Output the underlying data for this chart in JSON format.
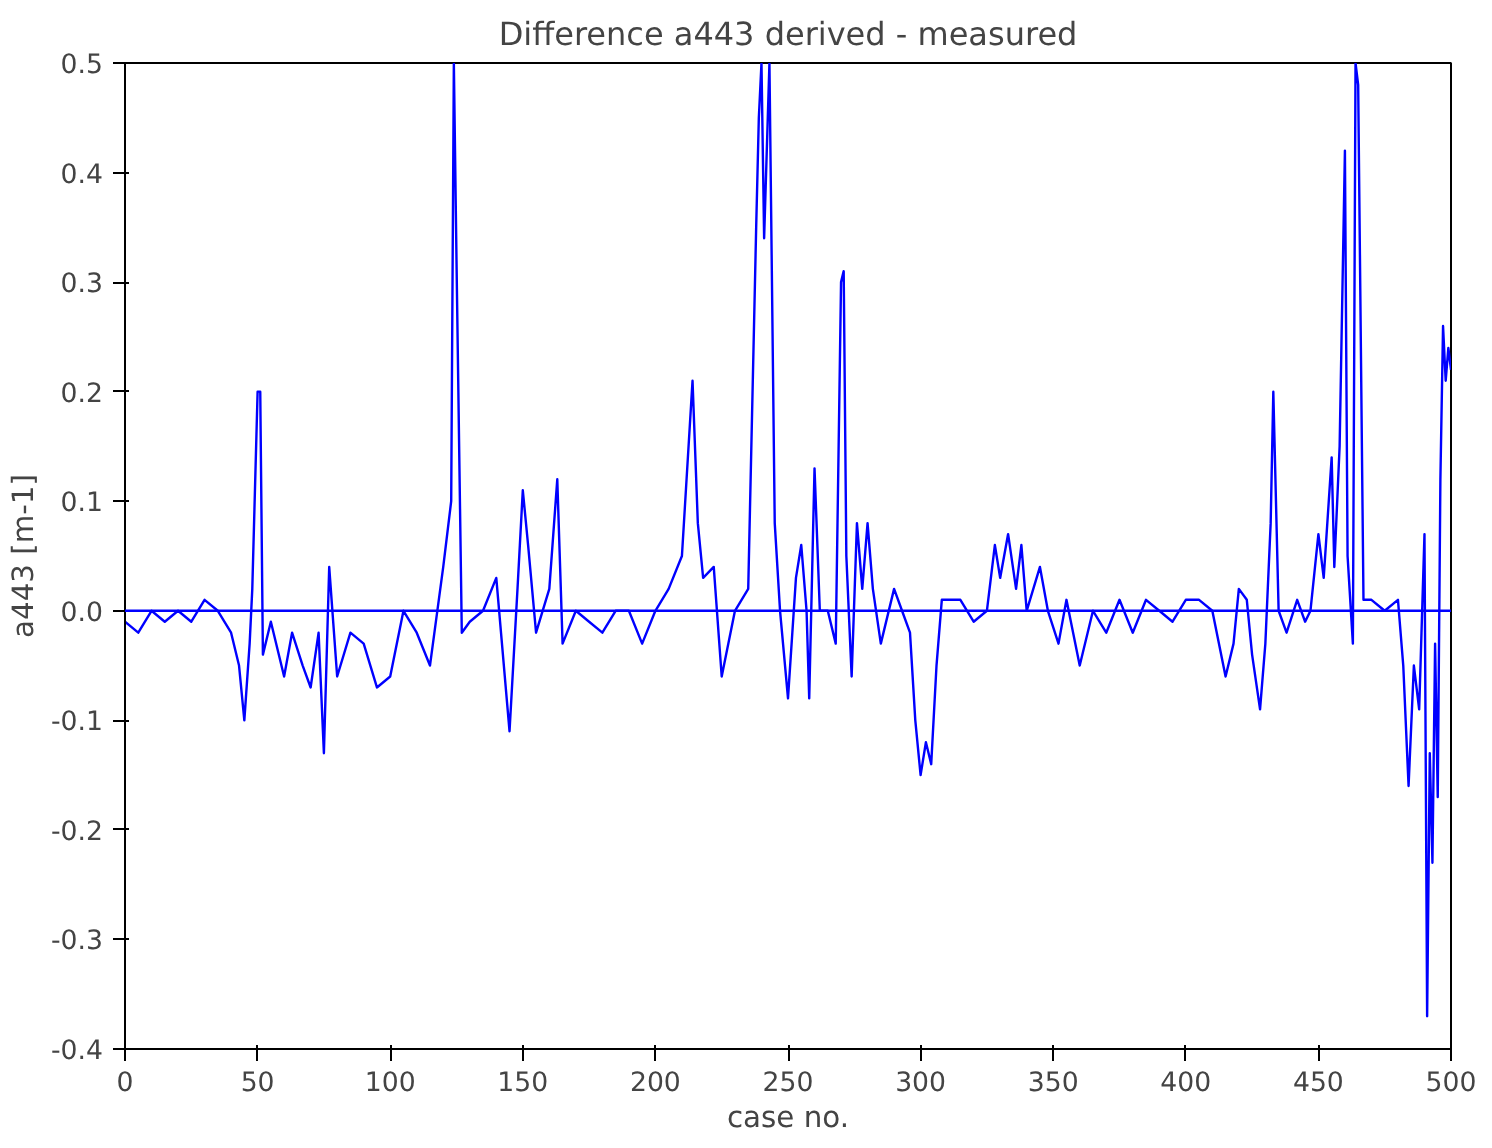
{
  "chart_data": {
    "type": "line",
    "title": "Difference a443 derived - measured",
    "xlabel": "case no.",
    "ylabel": "a443 [m-1]",
    "xlim": [
      0,
      500
    ],
    "ylim": [
      -0.4,
      0.5
    ],
    "xticks": [
      0,
      50,
      100,
      150,
      200,
      250,
      300,
      350,
      400,
      450,
      500
    ],
    "yticks": [
      {
        "value": -0.4,
        "label": "-0.4"
      },
      {
        "value": -0.3,
        "label": "-0.3"
      },
      {
        "value": -0.2,
        "label": "-0.2"
      },
      {
        "value": -0.1,
        "label": "-0.1"
      },
      {
        "value": 0,
        "label": "0.0"
      },
      {
        "value": 0.1,
        "label": "0.1"
      },
      {
        "value": 0.2,
        "label": "0.2"
      },
      {
        "value": 0.3,
        "label": "0.3"
      },
      {
        "value": 0.4,
        "label": "0.4"
      },
      {
        "value": 0.5,
        "label": "0.5"
      }
    ],
    "grid": false,
    "ref_lines": [
      {
        "axis": "y",
        "value": 0,
        "color": "#0000ff"
      }
    ],
    "series": [
      {
        "color": "#0000ff",
        "x": [
          0,
          5,
          10,
          15,
          20,
          25,
          30,
          35,
          40,
          43,
          45,
          47,
          48,
          50,
          51,
          52,
          55,
          60,
          63,
          67,
          70,
          73,
          75,
          77,
          80,
          85,
          90,
          95,
          100,
          105,
          110,
          115,
          120,
          123,
          124,
          125,
          127,
          130,
          135,
          140,
          145,
          148,
          150,
          152,
          155,
          160,
          163,
          165,
          170,
          175,
          180,
          185,
          190,
          195,
          200,
          205,
          210,
          214,
          216,
          218,
          222,
          225,
          230,
          235,
          238,
          239,
          240,
          241,
          243,
          245,
          247,
          250,
          253,
          255,
          257,
          258,
          260,
          262,
          265,
          268,
          270,
          271,
          272,
          274,
          276,
          278,
          280,
          282,
          285,
          290,
          293,
          296,
          298,
          300,
          302,
          304,
          306,
          308,
          315,
          320,
          325,
          328,
          330,
          333,
          336,
          338,
          340,
          345,
          348,
          352,
          355,
          360,
          365,
          370,
          375,
          380,
          385,
          390,
          395,
          400,
          405,
          410,
          415,
          418,
          420,
          423,
          425,
          428,
          430,
          432,
          433,
          435,
          438,
          442,
          445,
          447,
          450,
          452,
          455,
          456,
          458,
          460,
          461,
          463,
          464,
          465,
          467,
          470,
          475,
          480,
          482,
          484,
          486,
          488,
          490,
          491,
          492,
          493,
          494,
          495,
          496,
          497,
          498,
          499,
          500
        ],
        "values": [
          -0.01,
          -0.02,
          0.0,
          -0.01,
          0.0,
          -0.01,
          0.01,
          0.0,
          -0.02,
          -0.05,
          -0.1,
          -0.03,
          0.02,
          0.2,
          0.2,
          -0.04,
          -0.01,
          -0.06,
          -0.02,
          -0.05,
          -0.07,
          -0.02,
          -0.13,
          0.04,
          -0.06,
          -0.02,
          -0.03,
          -0.07,
          -0.06,
          0.0,
          -0.02,
          -0.05,
          0.04,
          0.1,
          0.5,
          0.32,
          -0.02,
          -0.01,
          0.0,
          0.03,
          -0.11,
          0.02,
          0.11,
          0.06,
          -0.02,
          0.02,
          0.12,
          -0.03,
          0.0,
          -0.01,
          -0.02,
          0.0,
          0.0,
          -0.03,
          0.0,
          0.02,
          0.05,
          0.21,
          0.08,
          0.03,
          0.04,
          -0.06,
          0.0,
          0.02,
          0.35,
          0.45,
          0.5,
          0.34,
          0.5,
          0.08,
          0.0,
          -0.08,
          0.03,
          0.06,
          0.0,
          -0.08,
          0.13,
          0.0,
          0.0,
          -0.03,
          0.3,
          0.31,
          0.05,
          -0.06,
          0.08,
          0.02,
          0.08,
          0.02,
          -0.03,
          0.02,
          0.0,
          -0.02,
          -0.1,
          -0.15,
          -0.12,
          -0.14,
          -0.05,
          0.01,
          0.01,
          -0.01,
          0.0,
          0.06,
          0.03,
          0.07,
          0.02,
          0.06,
          0.0,
          0.04,
          0.0,
          -0.03,
          0.01,
          -0.05,
          0.0,
          -0.02,
          0.01,
          -0.02,
          0.01,
          0.0,
          -0.01,
          0.01,
          0.01,
          0.0,
          -0.06,
          -0.03,
          0.02,
          0.01,
          -0.04,
          -0.09,
          -0.03,
          0.08,
          0.2,
          0.0,
          -0.02,
          0.01,
          -0.01,
          0.0,
          0.07,
          0.03,
          0.14,
          0.04,
          0.15,
          0.42,
          0.05,
          -0.03,
          0.5,
          0.48,
          0.01,
          0.01,
          0.0,
          0.01,
          -0.05,
          -0.16,
          -0.05,
          -0.09,
          0.07,
          -0.37,
          -0.13,
          -0.23,
          -0.03,
          -0.17,
          0.12,
          0.26,
          0.21,
          0.24,
          0.22
        ]
      }
    ]
  }
}
